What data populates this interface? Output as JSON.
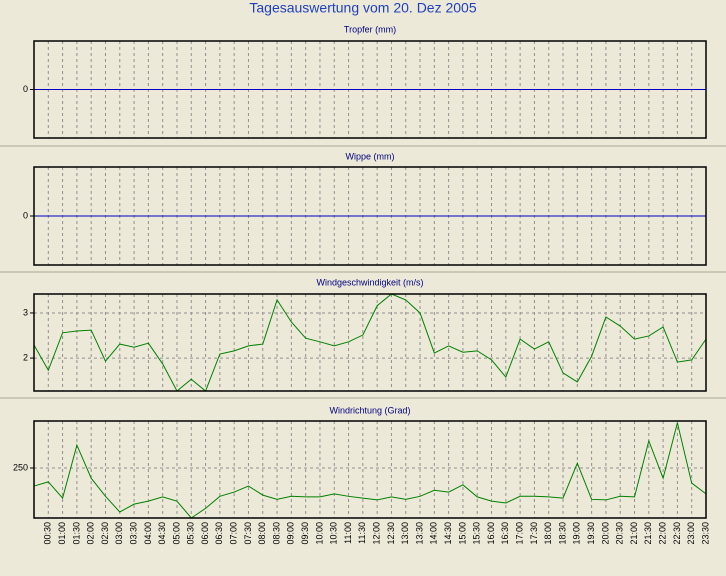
{
  "title": "Tagesauswertung vom 20. Dez 2005",
  "chart_data": [
    {
      "type": "line",
      "title": "Tropfer (mm)",
      "color": "#0000c0",
      "ylim": [
        -1,
        1
      ],
      "yticks": [
        0
      ],
      "grid": true,
      "values": [
        0,
        0,
        0,
        0,
        0,
        0,
        0,
        0,
        0,
        0,
        0,
        0,
        0,
        0,
        0,
        0,
        0,
        0,
        0,
        0,
        0,
        0,
        0,
        0,
        0,
        0,
        0,
        0,
        0,
        0,
        0,
        0,
        0,
        0,
        0,
        0,
        0,
        0,
        0,
        0,
        0,
        0,
        0,
        0,
        0,
        0,
        0,
        0
      ]
    },
    {
      "type": "line",
      "title": "Wippe (mm)",
      "color": "#0000c0",
      "ylim": [
        -1,
        1
      ],
      "yticks": [
        0
      ],
      "grid": true,
      "values": [
        0,
        0,
        0,
        0,
        0,
        0,
        0,
        0,
        0,
        0,
        0,
        0,
        0,
        0,
        0,
        0,
        0,
        0,
        0,
        0,
        0,
        0,
        0,
        0,
        0,
        0,
        0,
        0,
        0,
        0,
        0,
        0,
        0,
        0,
        0,
        0,
        0,
        0,
        0,
        0,
        0,
        0,
        0,
        0,
        0,
        0,
        0,
        0
      ]
    },
    {
      "type": "line",
      "title": "Windgeschwindigkeit (m/s)",
      "color": "#008000",
      "ylim": [
        1.27,
        3.42
      ],
      "yticks": [
        2,
        3
      ],
      "grid": true,
      "values": [
        2.29,
        1.73,
        2.56,
        2.6,
        2.62,
        1.93,
        2.31,
        2.24,
        2.33,
        1.87,
        1.27,
        1.53,
        1.27,
        2.09,
        2.16,
        2.27,
        2.31,
        3.29,
        2.8,
        2.44,
        2.36,
        2.27,
        2.36,
        2.51,
        3.16,
        3.42,
        3.29,
        3.0,
        2.11,
        2.27,
        2.13,
        2.16,
        1.96,
        1.58,
        2.42,
        2.2,
        2.36,
        1.67,
        1.47,
        2.04,
        2.91,
        2.71,
        2.42,
        2.49,
        2.69,
        1.91,
        1.96,
        2.42
      ]
    },
    {
      "type": "line",
      "title": "Windrichtung (Grad)",
      "color": "#008000",
      "ylim": [
        167,
        328
      ],
      "yticks": [
        250
      ],
      "grid": true,
      "categories": [
        null,
        "00:30",
        "01:00",
        "01:30",
        "02:00",
        "02:30",
        "03:00",
        "03:30",
        "04:00",
        "04:30",
        "05:00",
        "05:30",
        "06:00",
        "06:30",
        "07:00",
        "07:30",
        "08:00",
        "08:30",
        "09:00",
        "09:30",
        "10:00",
        "10:30",
        "11:00",
        "11:30",
        "12:00",
        "12:30",
        "13:00",
        "13:30",
        "14:00",
        "14:30",
        "15:00",
        "15:30",
        "16:00",
        "16:30",
        "17:00",
        "17:30",
        "18:00",
        "18:30",
        "19:00",
        "19:30",
        "20:00",
        "20:30",
        "21:00",
        "21:30",
        "22:00",
        "22:30",
        "23:00",
        "23:30"
      ],
      "values": [
        220,
        227,
        200,
        288,
        233,
        203,
        177,
        190,
        195,
        202,
        195,
        167,
        183,
        203,
        210,
        220,
        205,
        198,
        203,
        202,
        202,
        207,
        203,
        200,
        197,
        202,
        198,
        203,
        213,
        210,
        222,
        202,
        195,
        192,
        203,
        203,
        202,
        200,
        258,
        198,
        197,
        203,
        202,
        295,
        233,
        325,
        225,
        207
      ]
    }
  ]
}
